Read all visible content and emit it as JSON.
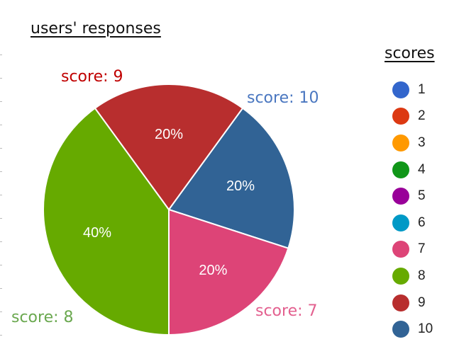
{
  "chart_data": {
    "type": "pie",
    "title": "users' responses",
    "legend_title": "scores",
    "legend_position": "right",
    "legend": [
      {
        "label": "1",
        "color": "#3366cc"
      },
      {
        "label": "2",
        "color": "#dc3912"
      },
      {
        "label": "3",
        "color": "#ff9900"
      },
      {
        "label": "4",
        "color": "#109618"
      },
      {
        "label": "5",
        "color": "#990099"
      },
      {
        "label": "6",
        "color": "#0099c6"
      },
      {
        "label": "7",
        "color": "#dd4477"
      },
      {
        "label": "8",
        "color": "#66aa00"
      },
      {
        "label": "9",
        "color": "#b82e2e"
      },
      {
        "label": "10",
        "color": "#316395"
      }
    ],
    "slices": [
      {
        "label": "10",
        "value": 20,
        "percent_label": "20%",
        "color": "#316395",
        "callout": "score: 10",
        "callout_color": "#4a77c0"
      },
      {
        "label": "7",
        "value": 20,
        "percent_label": "20%",
        "color": "#dd4477",
        "callout": "score: 7",
        "callout_color": "#e3608f"
      },
      {
        "label": "8",
        "value": 40,
        "percent_label": "40%",
        "color": "#66aa00",
        "callout": "score: 8",
        "callout_color": "#6aa84f"
      },
      {
        "label": "9",
        "value": 20,
        "percent_label": "20%",
        "color": "#b82e2e",
        "callout": "score: 9",
        "callout_color": "#c00000"
      }
    ]
  }
}
